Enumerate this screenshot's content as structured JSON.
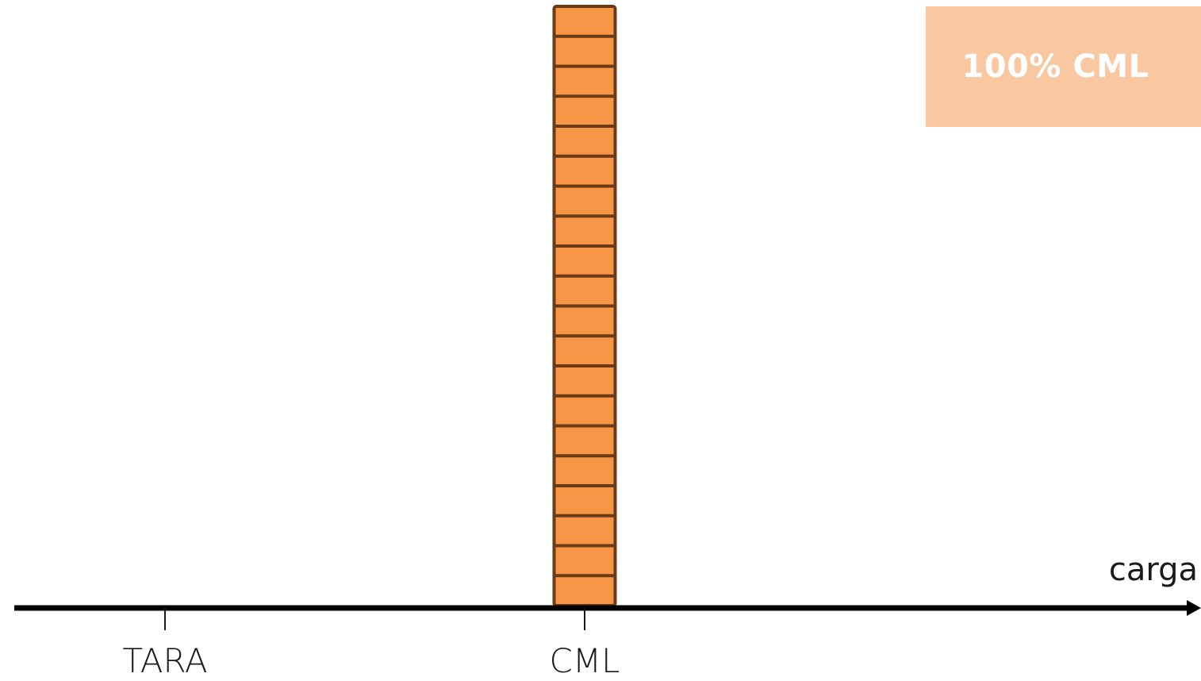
{
  "badge": {
    "text": "100% CML",
    "background": "#f9c8a0",
    "text_color": "#ffffff"
  },
  "axis": {
    "label": "carga",
    "color": "#000000",
    "ticks": [
      {
        "id": "tara",
        "label": "TARA"
      },
      {
        "id": "cml",
        "label": "CML"
      }
    ]
  },
  "stack": {
    "position_tick": "CML",
    "fill_fraction": 1.0,
    "block_count": 20,
    "fill_color": "#f79646",
    "border_color": "#6b3a16"
  }
}
